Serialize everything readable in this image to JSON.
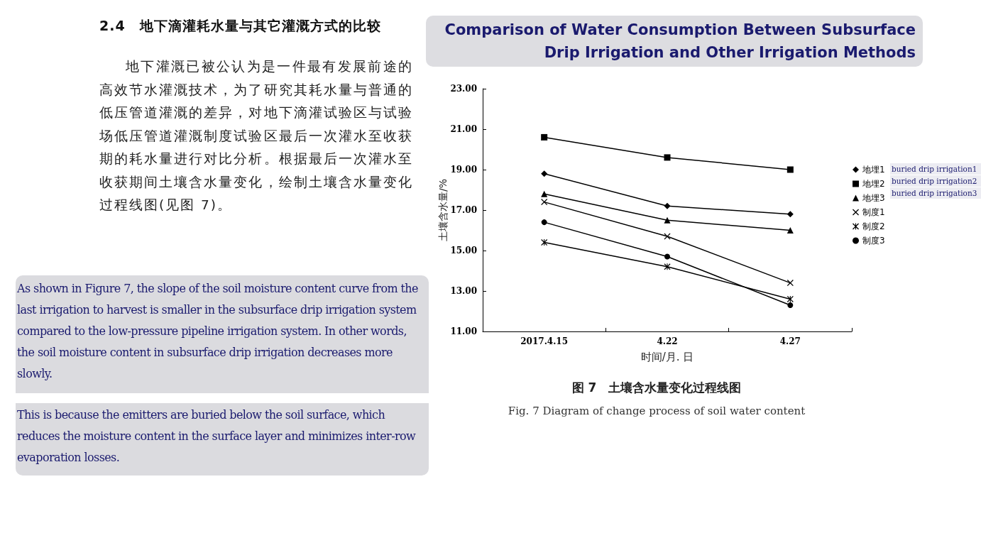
{
  "chart_data": {
    "type": "line",
    "title": "图 7　土壤含水量变化过程线图",
    "subtitle": "Fig. 7 Diagram of change process of soil water content",
    "xlabel": "时间/月. 日",
    "ylabel": "土壤含水量/%",
    "categories": [
      "2017.4.15",
      "4.22",
      "4.27"
    ],
    "series": [
      {
        "name": "地埋1",
        "color": "#000000",
        "marker": "diamond",
        "values": [
          18.8,
          17.2,
          16.8
        ]
      },
      {
        "name": "地埋2",
        "color": "#000000",
        "marker": "square",
        "values": [
          20.6,
          19.6,
          19.0
        ]
      },
      {
        "name": "地埋3",
        "color": "#000000",
        "marker": "triangle",
        "values": [
          17.8,
          16.5,
          16.0
        ]
      },
      {
        "name": "制度1",
        "color": "#000000",
        "marker": "cross",
        "values": [
          17.4,
          15.7,
          13.4
        ]
      },
      {
        "name": "制度2",
        "color": "#000000",
        "marker": "star",
        "values": [
          15.4,
          14.2,
          12.6
        ]
      },
      {
        "name": "制度3",
        "color": "#000000",
        "marker": "circle",
        "values": [
          16.4,
          14.7,
          12.3
        ]
      }
    ],
    "ylim": [
      11,
      23
    ],
    "yticks": [
      {
        "value": 11,
        "label": "11.00"
      },
      {
        "value": 13,
        "label": "13.00"
      },
      {
        "value": 15,
        "label": "15.00"
      },
      {
        "value": 17,
        "label": "17.00"
      },
      {
        "value": 19,
        "label": "19.00"
      },
      {
        "value": 21,
        "label": "21.00"
      },
      {
        "value": 23,
        "label": "23.00"
      }
    ],
    "grid": false,
    "legend": "right",
    "line_style": "solid",
    "annotations": [
      "2.4　地下滴灌耗水量与其它灌溉方式的比较",
      "地下灌溉已被公认为是一件最有发展前途的高效节水灌溉技术，为了研究其耗水量与普通的低压管道灌溉的差异，对地下滴灌试验区与试验场低压管道灌溉制度试验区最后一次灌水至收获期的耗水量进行对比分析。根据最后一次灌水至收获期间土壤含水量变化，绘制土壤含水量变化过程线图(见图 7)。",
      "Comparison of Water Consumption Between Subsurface Drip Irrigation and Other Irrigation Methods",
      "As shown in Figure 7, the slope of the soil moisture content curve from the last irrigation to harvest is smaller in the subsurface drip irrigation system compared to the low-pressure pipeline irrigation system. In other words, the soil moisture content in subsurface drip irrigation decreases more slowly.",
      "This is because the emitters are buried below the soil surface, which reduces the moisture content in the surface layer and minimizes inter-row evaporation losses.",
      "buried drip irrigation1",
      "buried drip irrigation2",
      "buried drip irrigation3"
    ]
  }
}
